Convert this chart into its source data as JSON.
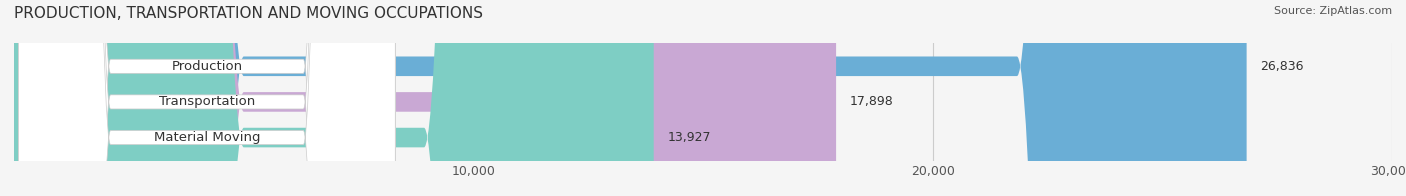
{
  "title": "PRODUCTION, TRANSPORTATION AND MOVING OCCUPATIONS",
  "source": "Source: ZipAtlas.com",
  "categories": [
    "Production",
    "Transportation",
    "Material Moving"
  ],
  "values": [
    26836,
    17898,
    13927
  ],
  "bar_colors": [
    "#6aaed6",
    "#c9a8d4",
    "#7ecec4"
  ],
  "label_box_color": "#ffffff",
  "background_color": "#f5f5f5",
  "xlim": [
    0,
    30000
  ],
  "xticks": [
    10000,
    20000,
    30000
  ],
  "xtick_labels": [
    "10,000",
    "20,000",
    "30,000"
  ],
  "title_fontsize": 11,
  "bar_height": 0.55,
  "value_label_fontsize": 9,
  "category_fontsize": 9.5
}
